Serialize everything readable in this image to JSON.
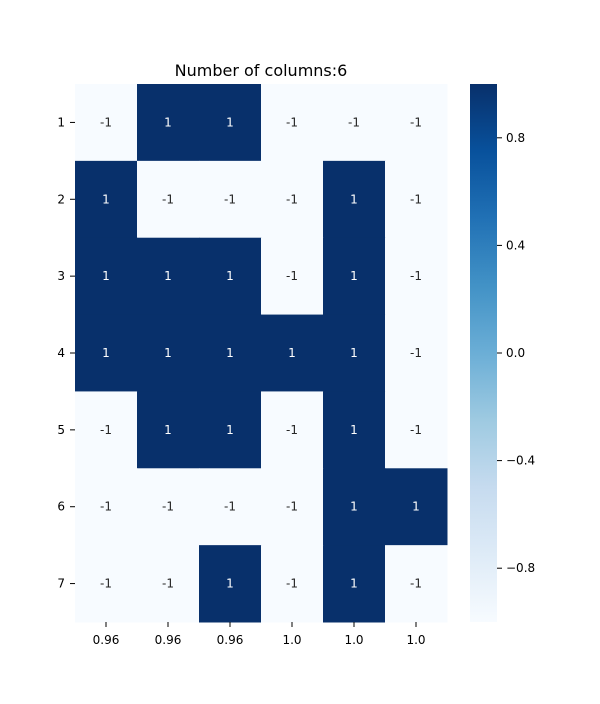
{
  "chart_data": {
    "type": "heatmap",
    "title": "Number of columns:6",
    "xlabel": "",
    "ylabel": "",
    "x_tick_labels": [
      "0.96",
      "0.96",
      "0.96",
      "1.0",
      "1.0",
      "1.0"
    ],
    "y_tick_labels": [
      "1",
      "2",
      "3",
      "4",
      "5",
      "6",
      "7"
    ],
    "values": [
      [
        -1,
        1,
        1,
        -1,
        -1,
        -1
      ],
      [
        1,
        -1,
        -1,
        -1,
        1,
        -1
      ],
      [
        1,
        1,
        1,
        -1,
        1,
        -1
      ],
      [
        1,
        1,
        1,
        1,
        1,
        -1
      ],
      [
        -1,
        1,
        1,
        -1,
        1,
        -1
      ],
      [
        -1,
        -1,
        -1,
        -1,
        1,
        1
      ],
      [
        -1,
        -1,
        1,
        -1,
        1,
        -1
      ]
    ],
    "cell_labels": [
      [
        "-1",
        "1",
        "1",
        "-1",
        "-1",
        "-1"
      ],
      [
        "1",
        "-1",
        "-1",
        "-1",
        "1",
        "-1"
      ],
      [
        "1",
        "1",
        "1",
        "-1",
        "1",
        "-1"
      ],
      [
        "1",
        "1",
        "1",
        "1",
        "1",
        "-1"
      ],
      [
        "-1",
        "1",
        "1",
        "-1",
        "1",
        "-1"
      ],
      [
        "-1",
        "-1",
        "-1",
        "-1",
        "1",
        "1"
      ],
      [
        "-1",
        "-1",
        "1",
        "-1",
        "1",
        "-1"
      ]
    ],
    "colormap": "Blues",
    "colormap_low": "#f7fbff",
    "colormap_high": "#08306b",
    "vmin": -1,
    "vmax": 1,
    "colorbar": {
      "ticks": [
        0.8,
        0.4,
        0.0,
        -0.4,
        -0.8
      ],
      "tick_labels": [
        "0.8",
        "0.4",
        "0.0",
        "−0.4",
        "−0.8"
      ]
    },
    "label_color_dark_cell": "#ffffff",
    "label_color_light_cell": "#262626"
  }
}
